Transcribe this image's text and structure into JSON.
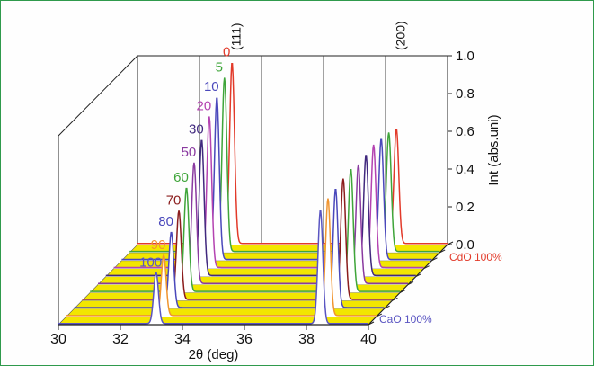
{
  "chart_data": {
    "type": "line",
    "subtype": "3d-waterfall",
    "xlabel": "2θ (deg)",
    "zlabel": "Int (abs.uni)",
    "xlim": [
      30,
      40
    ],
    "zlim": [
      0,
      1.0
    ],
    "x_ticks": [
      "30",
      "32",
      "34",
      "36",
      "38",
      "40"
    ],
    "z_ticks": [
      "0.0",
      "0.2",
      "0.4",
      "0.6",
      "0.8",
      "1.0"
    ],
    "peak_labels": [
      {
        "label": "(111)",
        "x": 33.2
      },
      {
        "label": "(200)",
        "x": 38.5
      }
    ],
    "depth_axis_labels": {
      "front": "CaO 100%",
      "back": "CdO 100%"
    },
    "series": [
      {
        "name": "0",
        "color": "#e23a2a",
        "peak1_x": 33.05,
        "peak1_y": 0.96,
        "peak2_x": 38.35,
        "peak2_y": 0.61
      },
      {
        "name": "5",
        "color": "#3fa53a",
        "peak1_x": 33.06,
        "peak1_y": 0.92,
        "peak2_x": 38.36,
        "peak2_y": 0.63
      },
      {
        "name": "10",
        "color": "#4a48bb",
        "peak1_x": 33.07,
        "peak1_y": 0.86,
        "peak2_x": 38.37,
        "peak2_y": 0.64
      },
      {
        "name": "20",
        "color": "#b443b1",
        "peak1_x": 33.08,
        "peak1_y": 0.8,
        "peak2_x": 38.38,
        "peak2_y": 0.65
      },
      {
        "name": "30",
        "color": "#41297e",
        "peak1_x": 33.09,
        "peak1_y": 0.72,
        "peak2_x": 38.39,
        "peak2_y": 0.64
      },
      {
        "name": "50",
        "color": "#8a3aa0",
        "peak1_x": 33.1,
        "peak1_y": 0.64,
        "peak2_x": 38.4,
        "peak2_y": 0.63
      },
      {
        "name": "60",
        "color": "#3fa53a",
        "peak1_x": 33.11,
        "peak1_y": 0.55,
        "peak2_x": 38.41,
        "peak2_y": 0.65
      },
      {
        "name": "70",
        "color": "#8b1d1d",
        "peak1_x": 33.12,
        "peak1_y": 0.47,
        "peak2_x": 38.42,
        "peak2_y": 0.64
      },
      {
        "name": "80",
        "color": "#4a48bb",
        "peak1_x": 33.13,
        "peak1_y": 0.4,
        "peak2_x": 38.43,
        "peak2_y": 0.63
      },
      {
        "name": "90",
        "color": "#f09530",
        "peak1_x": 33.14,
        "peak1_y": 0.32,
        "peak2_x": 38.44,
        "peak2_y": 0.62
      },
      {
        "name": "100",
        "color": "#5a55c2",
        "peak1_x": 33.15,
        "peak1_y": 0.27,
        "peak2_x": 38.45,
        "peak2_y": 0.6
      }
    ]
  }
}
